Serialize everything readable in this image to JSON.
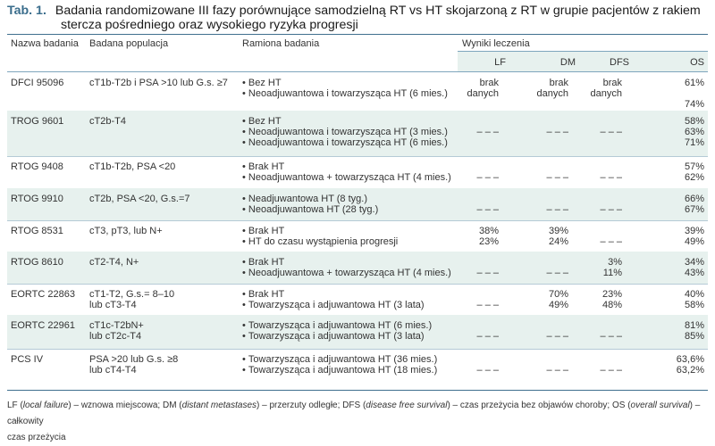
{
  "caption": {
    "label": "Tab. 1.",
    "title_line1": "Badania randomizowane III fazy porównujące samodzielną RT vs HT skojarzoną z RT w grupie pacjentów z rakiem",
    "title_line2": "stercza pośredniego oraz wysokiego ryzyka progresji"
  },
  "headers": {
    "study": "Nazwa badania",
    "population": "Badana populacja",
    "arms": "Ramiona badania",
    "results": "Wyniki leczenia",
    "lf": "LF",
    "dm": "DM",
    "dfs": "DFS",
    "os": "OS"
  },
  "rows": [
    {
      "name": "DFCI 95096",
      "population": [
        "cT1b-T2b i PSA >10 lub G.s. ≥7"
      ],
      "arms": [
        "Bez HT",
        "Neoadjuwantowa i towarzysząca HT (6 mies.)"
      ],
      "lf": [
        "brak",
        "danych"
      ],
      "dm": [
        "brak",
        "danych"
      ],
      "dfs": [
        "brak",
        "danych"
      ],
      "os": [
        "61%",
        "",
        "74%"
      ]
    },
    {
      "name": "TROG 9601",
      "population": [
        "cT2b-T4"
      ],
      "arms": [
        "Bez HT",
        "Neoadjuwantowa i towarzysząca HT (3 mies.)",
        "Neoadjuwantowa i towarzysząca HT (6 mies.)"
      ],
      "lf": [
        "",
        "– – –"
      ],
      "dm": [
        "",
        "– – –"
      ],
      "dfs": [
        "",
        "– – –"
      ],
      "os": [
        "58%",
        "63%",
        "71%"
      ]
    },
    {
      "name": "RTOG 9408",
      "population": [
        "cT1b-T2b, PSA <20"
      ],
      "arms": [
        "Brak HT",
        "Neoadjuwantowa + towarzysząca HT (4 mies.)"
      ],
      "lf": [
        "",
        "– – –"
      ],
      "dm": [
        "",
        "– – –"
      ],
      "dfs": [
        "",
        "– – –"
      ],
      "os": [
        "57%",
        "62%"
      ]
    },
    {
      "name": "RTOG 9910",
      "population": [
        "cT2b, PSA <20, G.s.=7"
      ],
      "arms": [
        "Neadjuwantowa HT (8 tyg.)",
        "Neoadjuwantowa HT (28 tyg.)"
      ],
      "lf": [
        "",
        "– – –"
      ],
      "dm": [
        "",
        "– – –"
      ],
      "dfs": [
        "",
        "– – –"
      ],
      "os": [
        "66%",
        "67%"
      ]
    },
    {
      "name": "RTOG 8531",
      "population": [
        "cT3, pT3, lub N+"
      ],
      "arms": [
        "Brak HT",
        "HT do czasu wystąpienia progresji"
      ],
      "lf": [
        "38%",
        "23%"
      ],
      "dm": [
        "39%",
        "24%"
      ],
      "dfs": [
        "",
        "– – –"
      ],
      "os": [
        "39%",
        "49%"
      ]
    },
    {
      "name": "RTOG 8610",
      "population": [
        "cT2-T4, N+"
      ],
      "arms": [
        "Brak HT",
        "Neoadjuwantowa + towarzysząca HT (4 mies.)"
      ],
      "lf": [
        "",
        "– – –"
      ],
      "dm": [
        "",
        "– – –"
      ],
      "dfs": [
        "3%",
        "11%"
      ],
      "os": [
        "34%",
        "43%"
      ]
    },
    {
      "name": "EORTC 22863",
      "population": [
        "cT1-T2, G.s.= 8–10",
        "lub cT3-T4"
      ],
      "arms": [
        "Brak HT",
        "Towarzysząca i adjuwantowa HT (3 lata)"
      ],
      "lf": [
        "",
        "– – –"
      ],
      "dm": [
        "70%",
        "49%"
      ],
      "dfs": [
        "23%",
        "48%"
      ],
      "os": [
        "40%",
        "58%"
      ]
    },
    {
      "name": "EORTC 22961",
      "population": [
        "cT1c-T2bN+",
        "lub cT2c-T4"
      ],
      "arms": [
        "Towarzysząca i adjuwantowa HT (6 mies.)",
        "Towarzysząca i adjuwantowa HT (3 lata)"
      ],
      "lf": [
        "",
        "– – –"
      ],
      "dm": [
        "",
        "– – –"
      ],
      "dfs": [
        "",
        "– – –"
      ],
      "os": [
        "81%",
        "85%"
      ]
    },
    {
      "name": "PCS IV",
      "population": [
        "PSA >20 lub G.s. ≥8",
        "lub cT4-T4"
      ],
      "arms": [
        "Towarzysząca i adjuwantowa HT (36 mies.)",
        "Towarzysząca i adjuwantowa HT (18 mies.)"
      ],
      "lf": [
        "",
        "– – –"
      ],
      "dm": [
        "",
        "– – –"
      ],
      "dfs": [
        "",
        "– – –"
      ],
      "os": [
        "63,6%",
        "63,2%"
      ]
    }
  ],
  "footnote": {
    "lf_abbr": "LF (",
    "lf_term": "local failure",
    "lf_def": ") – wznowa miejscowa; DM (",
    "dm_term": "distant metastases",
    "dm_def": ") – przerzuty odległe; DFS (",
    "dfs_term": "disease free survival",
    "dfs_def": ") – czas przeżycia bez objawów choroby; OS (",
    "os_term": "overall survival",
    "os_def": ") – całkowity",
    "line2": "czas przeżycia"
  }
}
